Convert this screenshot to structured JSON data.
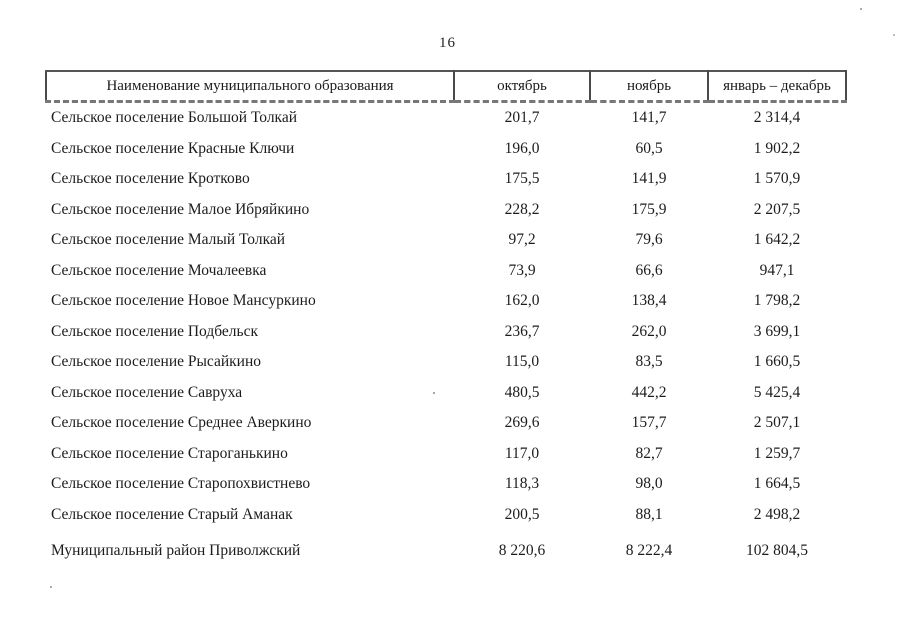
{
  "page": {
    "number": "16"
  },
  "table": {
    "headers": [
      "Наименование муниципального образования",
      "октябрь",
      "ноябрь",
      "январь – декабрь"
    ],
    "rows": [
      {
        "name": "Сельское поселение Большой Толкай",
        "october": "201,7",
        "november": "141,7",
        "jan_dec": "2 314,4",
        "total": false
      },
      {
        "name": "Сельское поселение Красные Ключи",
        "october": "196,0",
        "november": "60,5",
        "jan_dec": "1 902,2",
        "total": false
      },
      {
        "name": "Сельское поселение Кротково",
        "october": "175,5",
        "november": "141,9",
        "jan_dec": "1 570,9",
        "total": false
      },
      {
        "name": "Сельское поселение Малое Ибряйкино",
        "october": "228,2",
        "november": "175,9",
        "jan_dec": "2 207,5",
        "total": false
      },
      {
        "name": "Сельское поселение Малый Толкай",
        "october": "97,2",
        "november": "79,6",
        "jan_dec": "1 642,2",
        "total": false
      },
      {
        "name": "Сельское поселение Мочалеевка",
        "october": "73,9",
        "november": "66,6",
        "jan_dec": "947,1",
        "total": false
      },
      {
        "name": "Сельское поселение Новое Мансуркино",
        "october": "162,0",
        "november": "138,4",
        "jan_dec": "1 798,2",
        "total": false
      },
      {
        "name": "Сельское поселение Подбельск",
        "october": "236,7",
        "november": "262,0",
        "jan_dec": "3 699,1",
        "total": false
      },
      {
        "name": "Сельское поселение Рысайкино",
        "october": "115,0",
        "november": "83,5",
        "jan_dec": "1 660,5",
        "total": false
      },
      {
        "name": "Сельское поселение Савруха",
        "october": "480,5",
        "november": "442,2",
        "jan_dec": "5 425,4",
        "total": false
      },
      {
        "name": "Сельское поселение Среднее Аверкино",
        "october": "269,6",
        "november": "157,7",
        "jan_dec": "2 507,1",
        "total": false
      },
      {
        "name": "Сельское поселение Староганькино",
        "october": "117,0",
        "november": "82,7",
        "jan_dec": "1 259,7",
        "total": false
      },
      {
        "name": "Сельское поселение Старопохвистнево",
        "october": "118,3",
        "november": "98,0",
        "jan_dec": "1 664,5",
        "total": false
      },
      {
        "name": "Сельское поселение Старый Аманак",
        "october": "200,5",
        "november": "88,1",
        "jan_dec": "2 498,2",
        "total": false
      },
      {
        "name": "Муниципальный район Приволжский",
        "october": "8 220,6",
        "november": "8 222,4",
        "jan_dec": "102 804,5",
        "total": true
      }
    ]
  }
}
